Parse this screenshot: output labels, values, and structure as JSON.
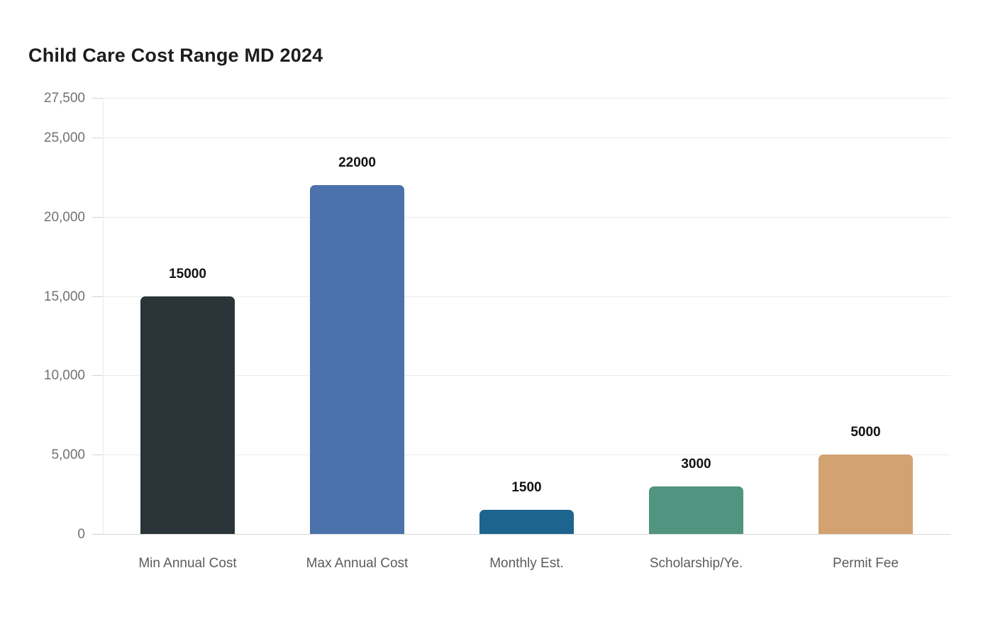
{
  "chart_data": {
    "type": "bar",
    "title": "Child Care Cost Range MD 2024",
    "categories": [
      "Min Annual Cost",
      "Max Annual Cost",
      "Monthly Est.",
      "Scholarship/Ye.",
      "Permit Fee"
    ],
    "values": [
      15000,
      22000,
      1500,
      3000,
      5000
    ],
    "bar_value_labels": [
      "15000",
      "22000",
      "1500",
      "3000",
      "5000"
    ],
    "bar_colors": [
      "#2b3438",
      "#4b72aa",
      "#1d648f",
      "#51947f",
      "#d2a271"
    ],
    "y_ticks": [
      0,
      5000,
      10000,
      15000,
      20000,
      25000,
      27500
    ],
    "y_tick_labels": [
      "0",
      "5,000",
      "10,000",
      "15,000",
      "20,000",
      "25,000",
      "27,500"
    ],
    "ylim": [
      0,
      27500
    ],
    "xlabel": "",
    "ylabel": "",
    "grid": true,
    "legend_position": "none",
    "colors": {
      "background": "#ffffff",
      "gridline": "#ebebeb",
      "baseline": "#d8d8d8",
      "tick": "#d2d2d2",
      "title_text": "#1d1d1d",
      "axis_text": "#717171",
      "category_text": "#5c5c5c",
      "value_text": "#131313"
    }
  }
}
